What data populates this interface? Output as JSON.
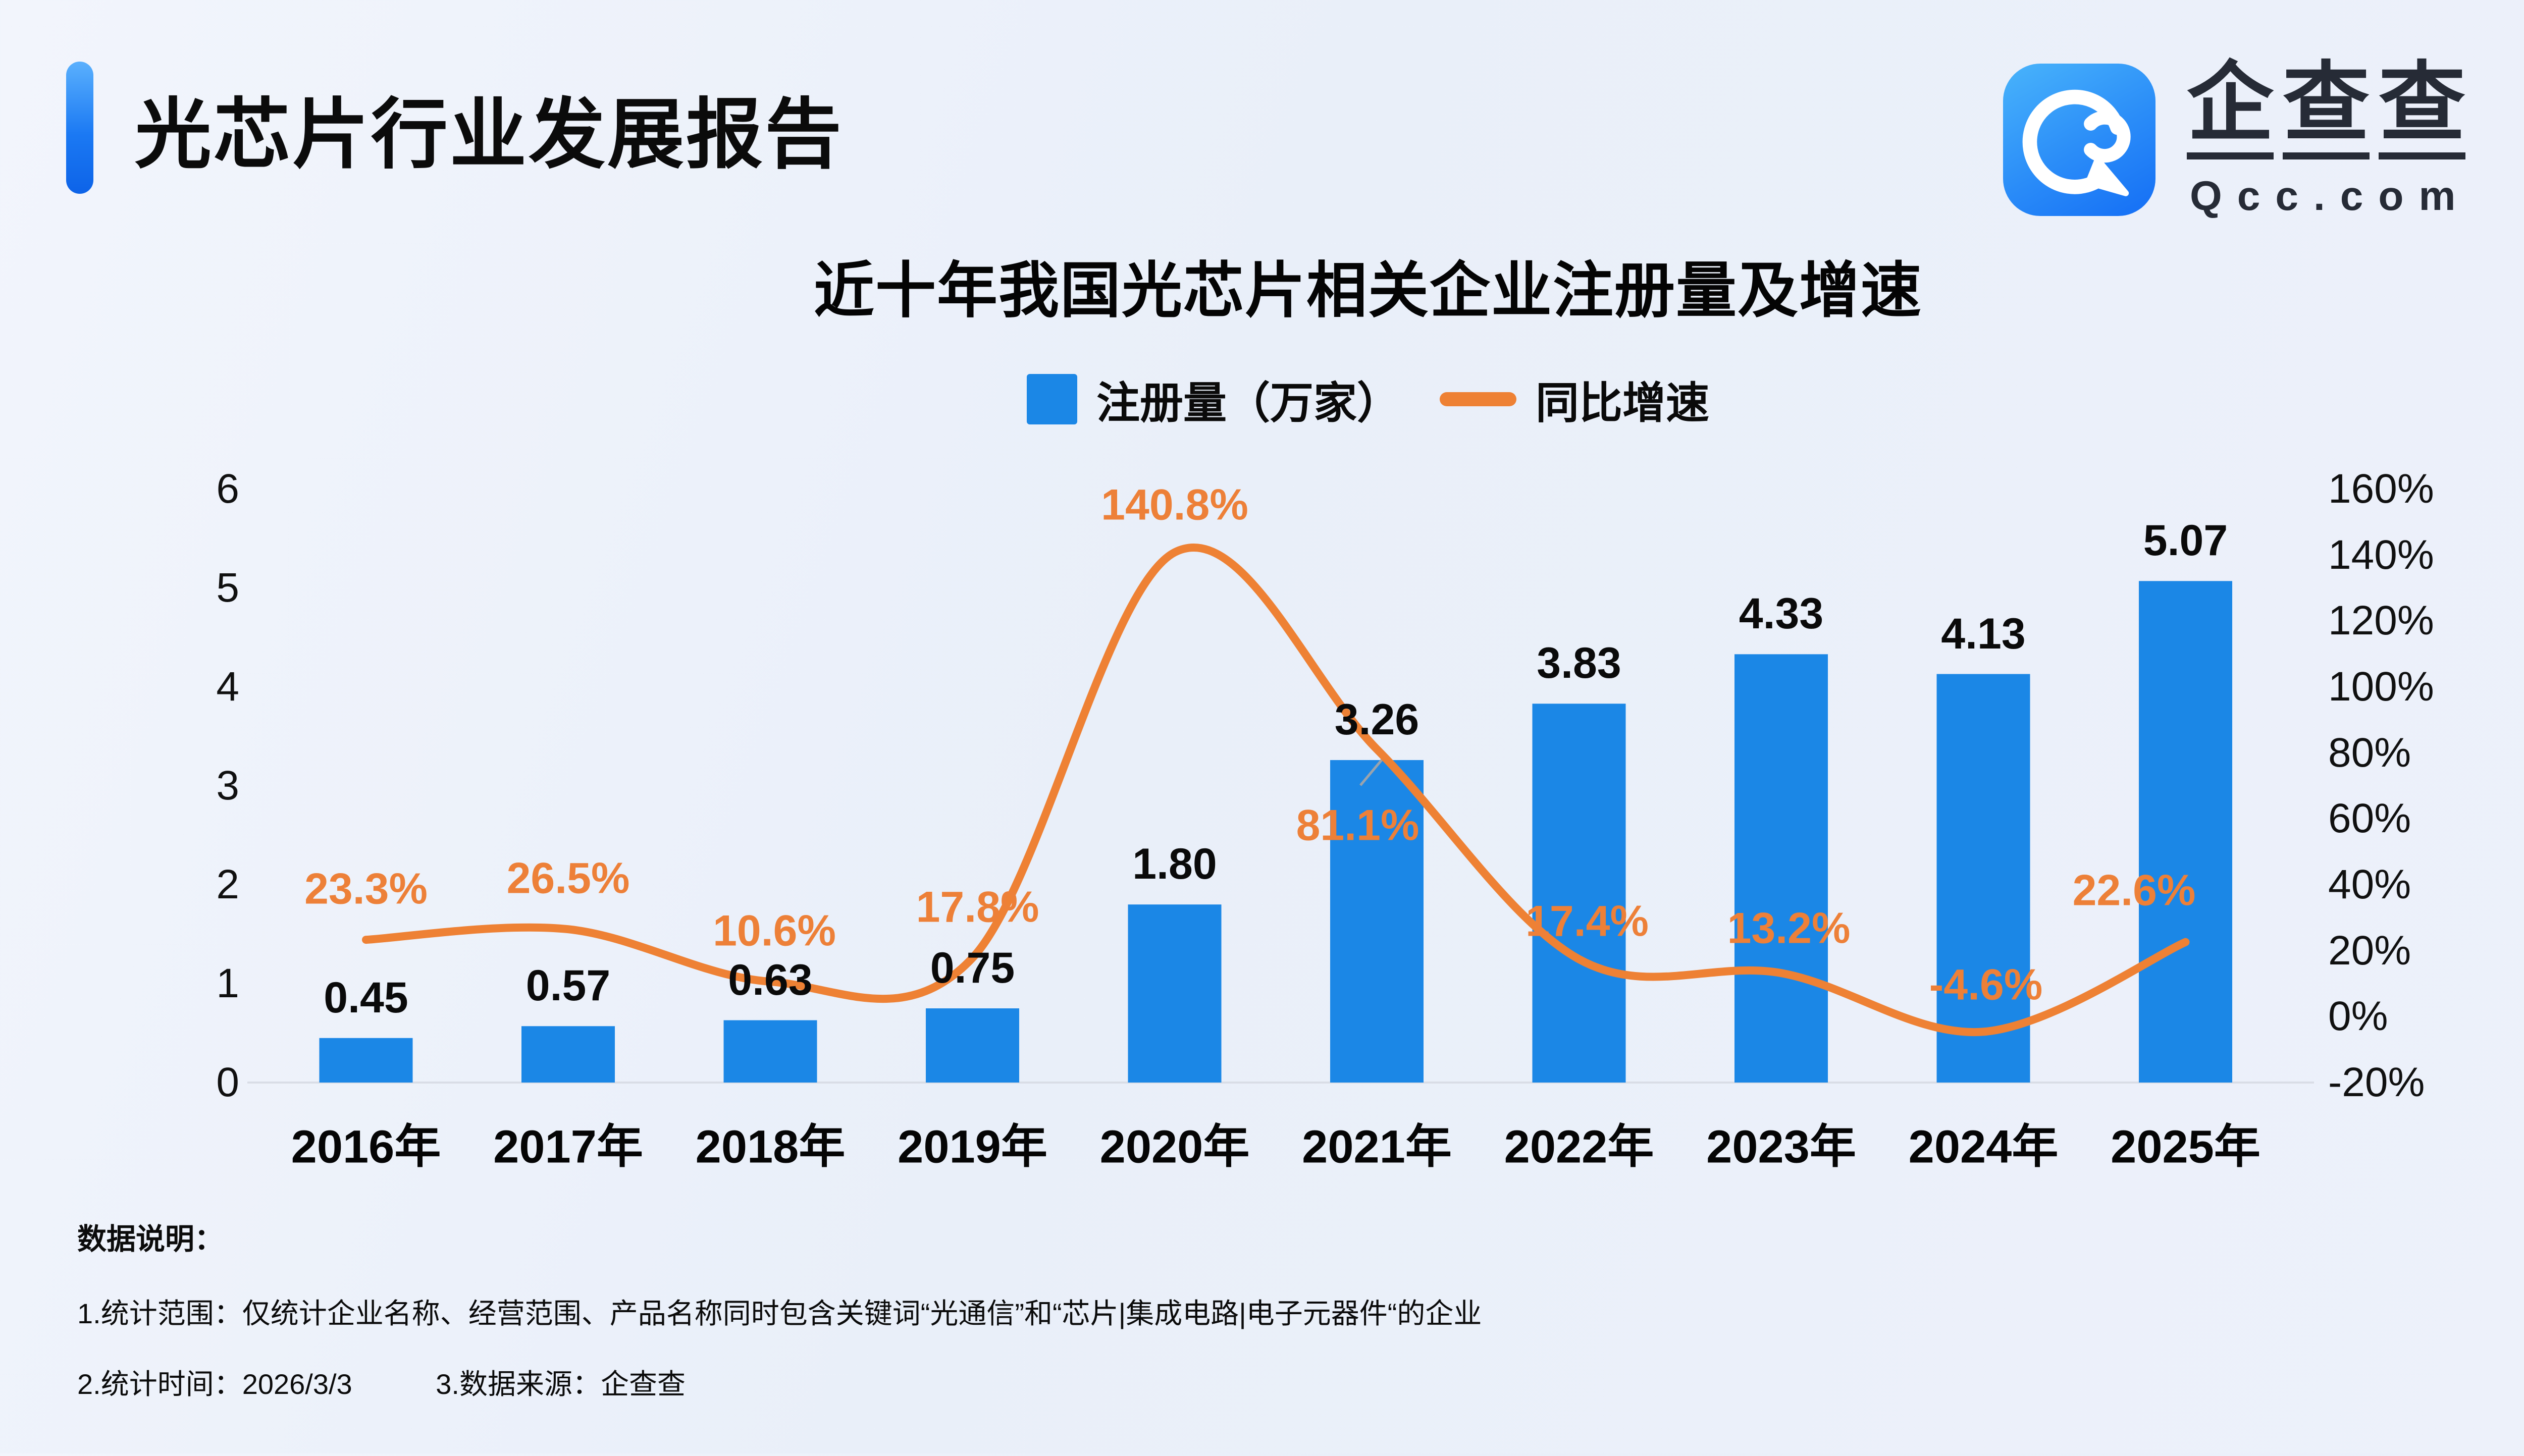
{
  "header": {
    "title": "光芯片行业发展报告"
  },
  "logo": {
    "brand_chars": [
      "企",
      "查",
      "查"
    ],
    "domain": "Qcc.com",
    "icon": "qcc-spiral-icon",
    "icon_bg": "#2a8cf8"
  },
  "chart": {
    "title": "近十年我国光芯片相关企业注册量及增速",
    "legend_bar": {
      "label": "注册量（万家）"
    },
    "legend_line": {
      "label": "同比增速"
    }
  },
  "chart_data": {
    "type": "bar+line",
    "title": "近十年我国光芯片相关企业注册量及增速",
    "categories": [
      "2016年",
      "2017年",
      "2018年",
      "2019年",
      "2020年",
      "2021年",
      "2022年",
      "2023年",
      "2024年",
      "2025年"
    ],
    "series": [
      {
        "name": "注册量（万家）",
        "type": "bar",
        "axis": "left",
        "color": "#1b87e6",
        "values": [
          0.45,
          0.57,
          0.63,
          0.75,
          1.8,
          3.26,
          3.83,
          4.33,
          4.13,
          5.07
        ],
        "labels": [
          "0.45",
          "0.57",
          "0.63",
          "0.75",
          "1.80",
          "3.26",
          "3.83",
          "4.33",
          "4.13",
          "5.07"
        ]
      },
      {
        "name": "同比增速",
        "type": "line",
        "axis": "right",
        "color": "#ee8134",
        "values": [
          23.3,
          26.5,
          10.6,
          17.8,
          140.8,
          81.1,
          17.4,
          13.2,
          -4.6,
          22.6
        ],
        "labels": [
          "23.3%",
          "26.5%",
          "10.6%",
          "17.8%",
          "140.8%",
          "81.1%",
          "17.4%",
          "13.2%",
          "-4.6%",
          "22.6%"
        ]
      }
    ],
    "left_axis": {
      "tick_labels": [
        "6",
        "5",
        "4",
        "3",
        "2",
        "1",
        "0"
      ],
      "min": 0,
      "max": 6
    },
    "right_axis": {
      "tick_labels": [
        "160%",
        "140%",
        "120%",
        "100%",
        "80%",
        "60%",
        "40%",
        "20%",
        "0%",
        "-20%"
      ],
      "min": -20,
      "max": 160
    },
    "grid": false,
    "legend_position": "top-center",
    "baseline_color": "#d9dde6"
  },
  "footer": {
    "heading": "数据说明：",
    "note1": "1.统计范围：仅统计企业名称、经营范围、产品名称同时包含关键词“光通信”和“芯片|集成电路|电子元器件“的企业",
    "note2": "2.统计时间：2026/3/3",
    "note3": "3.数据来源：企查查"
  }
}
